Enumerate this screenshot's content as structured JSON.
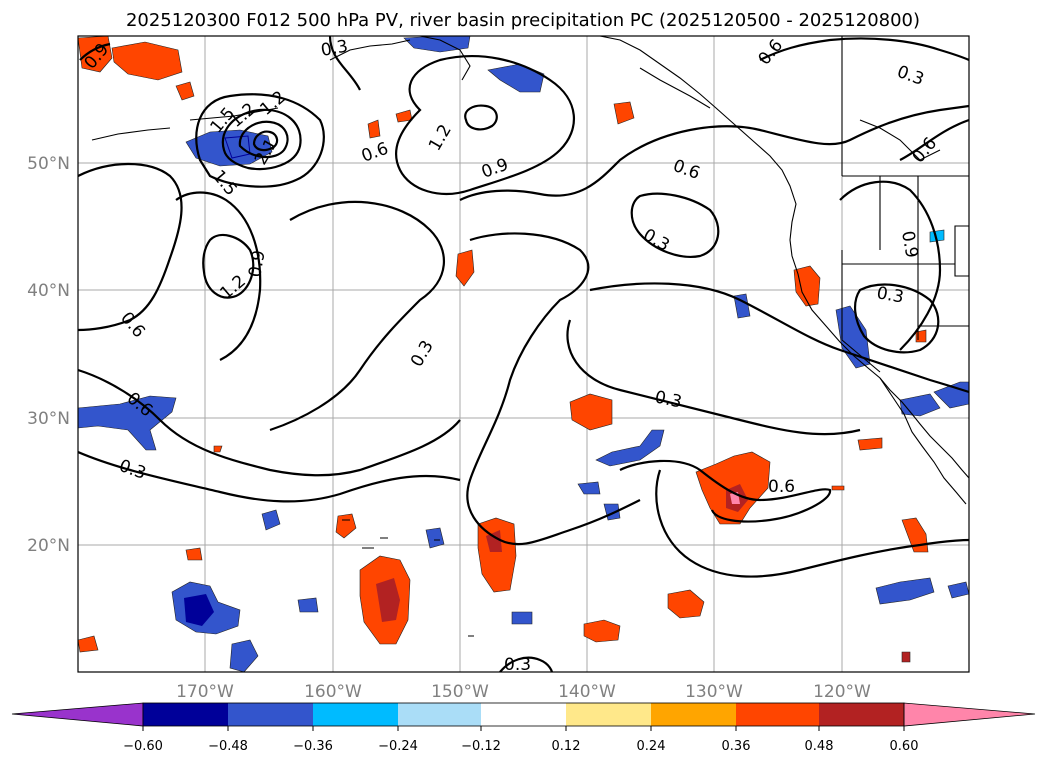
{
  "title": "2025120300 F012 500 hPa PV, river basin precipitation PC (2025120500 - 2025120800)",
  "map": {
    "lon_range": [
      -180,
      -110
    ],
    "lat_range": [
      10,
      60
    ],
    "lon_ticks": [
      "170°W",
      "160°W",
      "150°W",
      "140°W",
      "130°W",
      "120°W"
    ],
    "lat_ticks": [
      "50°N",
      "40°N",
      "30°N",
      "20°N"
    ],
    "contour_labels": [
      "0.9",
      "0.3",
      "1.2",
      "1.5",
      "1.2",
      "2.1",
      "1.5",
      "0.6",
      "1.2",
      "0.9",
      "0.6",
      "0.6",
      "0.3",
      "0.3",
      "0.6",
      "0.9",
      "1.2",
      "0.9",
      "0.6",
      "0.3",
      "0.6",
      "0.3",
      "0.3",
      "0.6",
      "0.3",
      "0.3"
    ]
  },
  "colorbar": {
    "levels": [
      "−0.60",
      "−0.48",
      "−0.36",
      "−0.24",
      "−0.12",
      "0.12",
      "0.24",
      "0.36",
      "0.48",
      "0.60"
    ],
    "colors": [
      "#9933cc",
      "#000099",
      "#3355cc",
      "#00bbff",
      "#aaddf7",
      "#ffffff",
      "#ffe88a",
      "#ffa500",
      "#ff4500",
      "#b22222",
      "#ff85aa"
    ]
  },
  "chart_data": {
    "type": "map",
    "title": "2025120300 F012 500 hPa PV, river basin precipitation PC (2025120500 - 2025120800)",
    "contour_levels": [
      0.3,
      0.6,
      0.9,
      1.2,
      1.5,
      1.8,
      2.1
    ],
    "shading_levels": [
      -0.6,
      -0.48,
      -0.36,
      -0.24,
      -0.12,
      0.12,
      0.24,
      0.36,
      0.48,
      0.6
    ]
  }
}
